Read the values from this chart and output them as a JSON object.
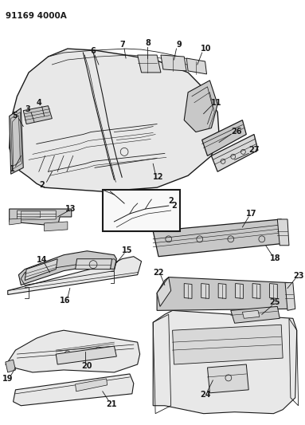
{
  "title": "91169 4000A",
  "bg": "#ffffff",
  "lc": "#1a1a1a",
  "fig_w": 3.83,
  "fig_h": 5.33,
  "dpi": 100,
  "gray1": "#d8d8d8",
  "gray2": "#c8c8c8",
  "gray3": "#e8e8e8"
}
